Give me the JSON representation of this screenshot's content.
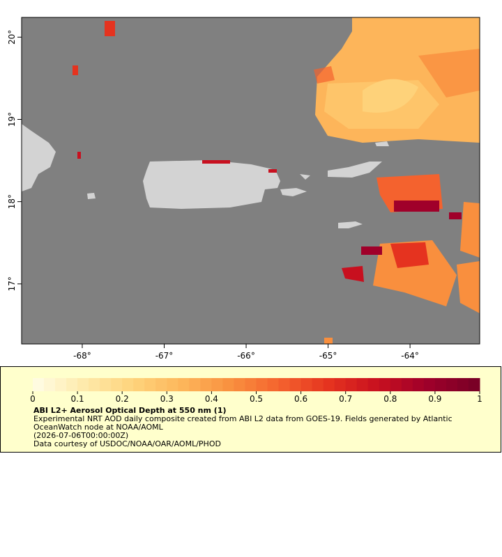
{
  "map": {
    "xlim": [
      -68.74,
      -63.15
    ],
    "ylim": [
      16.27,
      20.24
    ],
    "xticks": [
      {
        "value": -68,
        "label": "-68°"
      },
      {
        "value": -67,
        "label": "-67°"
      },
      {
        "value": -66,
        "label": "-66°"
      },
      {
        "value": -65,
        "label": "-65°"
      },
      {
        "value": -64,
        "label": "-64°"
      }
    ],
    "yticks": [
      {
        "value": 17,
        "label": "17°"
      },
      {
        "value": 18,
        "label": "18°"
      },
      {
        "value": 19,
        "label": "19°"
      },
      {
        "value": 20,
        "label": "20°"
      }
    ]
  },
  "colorbar": {
    "lim": [
      0,
      1
    ],
    "ticks": [
      0,
      0.1,
      0.2,
      0.3,
      0.4,
      0.5,
      0.6,
      0.7,
      0.8,
      0.9,
      1
    ],
    "colors": [
      "#fffbe0",
      "#fee9a8",
      "#fed27a",
      "#fdb55a",
      "#f98f3e",
      "#f4622e",
      "#e5331f",
      "#c8101f",
      "#a0002a",
      "#7a0026"
    ]
  },
  "legend": {
    "title": "ABI L2+ Aerosol Optical Depth at 550 nm (1)",
    "description": "Experimental NRT AOD daily composite created from ABI L2 data from GOES-19. Fields generated by Atlantic OceanWatch node at NOAA/AOML",
    "date": "(2026-07-06T00:00:00Z)",
    "credit": "Data courtesy of USDOC/NOAA/OAR/AOML/PHOD"
  }
}
